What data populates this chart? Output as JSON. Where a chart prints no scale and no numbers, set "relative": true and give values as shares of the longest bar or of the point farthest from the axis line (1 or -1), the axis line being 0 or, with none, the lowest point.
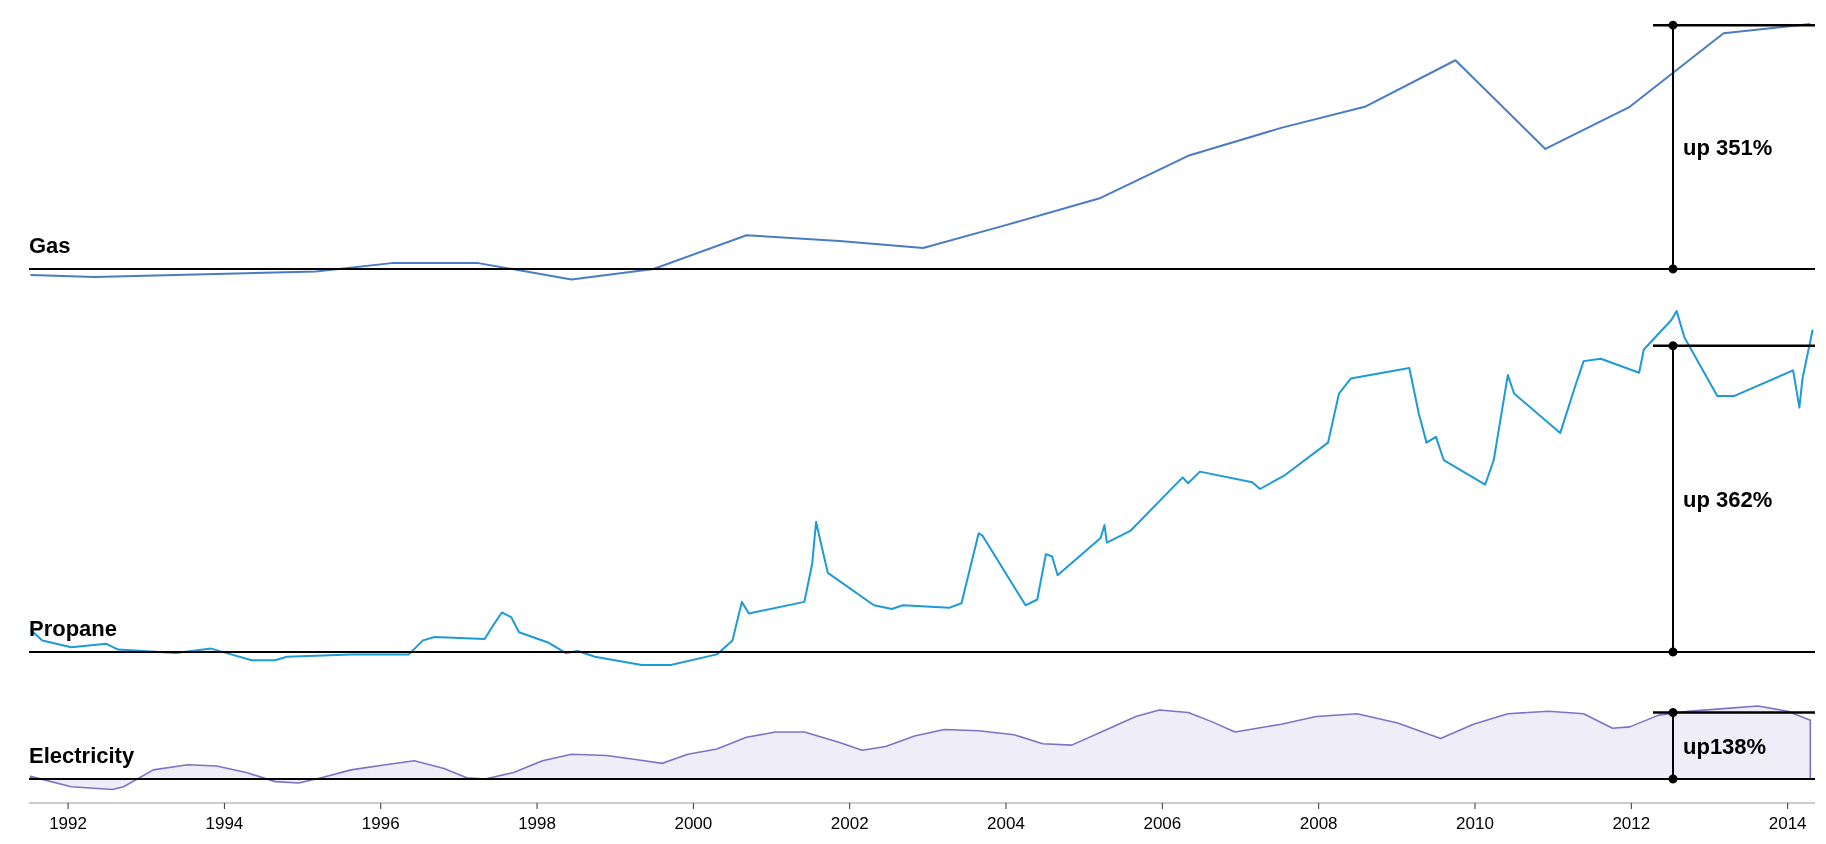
{
  "chart_data": [
    {
      "type": "line",
      "title": "Gas",
      "relative": true,
      "color": "#4a7cc4",
      "xlim": [
        1991.5,
        2014.35
      ],
      "tick_labels": false,
      "x": [
        1991.52,
        1992.34,
        1995.17,
        1996.14,
        1997.25,
        1998.44,
        1999.49,
        2000.68,
        2001.87,
        2002.94,
        2004.02,
        2005.21,
        2006.33,
        2007.52,
        2008.59,
        2009.75,
        2010.9,
        2011.98,
        2013.18,
        2014.29
      ],
      "values": [
        -0.024,
        -0.033,
        -0.01,
        0.024,
        0.024,
        -0.043,
        0,
        0.138,
        0.114,
        0.086,
        0.181,
        0.29,
        0.462,
        0.576,
        0.662,
        0.852,
        0.49,
        0.662,
        0.962,
        1
      ],
      "ref_lines": [
        {
          "axis": "y",
          "value": 0.995,
          "label": "up 351%"
        }
      ]
    },
    {
      "type": "line",
      "title": "Propane",
      "relative": true,
      "color": "#1e9ad6",
      "xlim": [
        1991.5,
        2014.35
      ],
      "tick_labels": false,
      "x": [
        1991.52,
        1991.67,
        1992.04,
        1992.49,
        1992.64,
        1993.38,
        1993.83,
        1994.13,
        1994.35,
        1994.65,
        1994.8,
        1995.62,
        1996.36,
        1996.54,
        1996.69,
        1997.33,
        1997.43,
        1997.55,
        1997.67,
        1997.77,
        1998.15,
        1998.37,
        1998.52,
        1998.74,
        1999.34,
        1999.71,
        2000.3,
        2000.5,
        2000.62,
        2000.71,
        2001.42,
        2001.52,
        2001.57,
        2001.61,
        2001.72,
        2002.31,
        2002.54,
        2002.68,
        2003.28,
        2003.43,
        2003.65,
        2003.7,
        2004.25,
        2004.4,
        2004.51,
        2004.59,
        2004.66,
        2005.21,
        2005.26,
        2005.29,
        2005.59,
        2006.26,
        2006.33,
        2006.48,
        2007.15,
        2007.25,
        2007.57,
        2008.12,
        2008.26,
        2008.41,
        2009.16,
        2009.28,
        2009.38,
        2009.5,
        2009.6,
        2010.13,
        2010.24,
        2010.42,
        2010.5,
        2011.09,
        2011.29,
        2011.39,
        2011.61,
        2012.1,
        2012.16,
        2012.51,
        2012.58,
        2012.68,
        2013.1,
        2013.32,
        2014.07,
        2014.15,
        2014.19,
        2014.32
      ],
      "values": [
        0.065,
        0.034,
        0.014,
        0.024,
        0.007,
        -0.003,
        0.01,
        -0.01,
        -0.024,
        -0.024,
        -0.014,
        -0.007,
        -0.007,
        0.034,
        0.044,
        0.038,
        0.075,
        0.116,
        0.102,
        0.058,
        0.027,
        -0.003,
        0.003,
        -0.014,
        -0.038,
        -0.038,
        -0.007,
        0.034,
        0.147,
        0.113,
        0.147,
        0.259,
        0.382,
        0.341,
        0.232,
        0.137,
        0.126,
        0.137,
        0.13,
        0.143,
        0.348,
        0.341,
        0.137,
        0.154,
        0.287,
        0.28,
        0.225,
        0.334,
        0.372,
        0.321,
        0.355,
        0.512,
        0.495,
        0.529,
        0.498,
        0.478,
        0.519,
        0.614,
        0.758,
        0.802,
        0.833,
        0.7,
        0.614,
        0.631,
        0.563,
        0.491,
        0.563,
        0.812,
        0.758,
        0.642,
        0.785,
        0.853,
        0.86,
        0.819,
        0.887,
        0.973,
        1,
        0.922,
        0.751,
        0.751,
        0.826,
        0.717,
        0.802,
        0.945
      ],
      "ref_lines": [
        {
          "axis": "y",
          "value": 0.898,
          "label": "up 362%"
        }
      ]
    },
    {
      "type": "area",
      "title": "Electricity",
      "relative": true,
      "color": "#7b74c4",
      "xlim": [
        1991.5,
        2014.35
      ],
      "tick_labels": "x",
      "xticks": [
        1992,
        1994,
        1996,
        1998,
        2000,
        2002,
        2004,
        2006,
        2008,
        2010,
        2012,
        2014
      ],
      "x": [
        1991.52,
        1992.04,
        1992.57,
        1992.71,
        1993.09,
        1993.53,
        1993.9,
        1994.28,
        1994.65,
        1994.95,
        1995.24,
        1995.62,
        1996.06,
        1996.43,
        1996.81,
        1997.1,
        1997.33,
        1997.7,
        1998.07,
        1998.44,
        1998.89,
        1999.26,
        1999.6,
        1999.93,
        2000.3,
        2000.68,
        2001.05,
        2001.42,
        2001.87,
        2002.16,
        2002.46,
        2002.83,
        2003.21,
        2003.65,
        2004.1,
        2004.47,
        2004.84,
        2005.29,
        2005.66,
        2005.96,
        2006.33,
        2006.63,
        2006.93,
        2007.52,
        2007.97,
        2008.49,
        2009.01,
        2009.56,
        2009.98,
        2010.42,
        2010.94,
        2011.39,
        2011.76,
        2011.98,
        2012.35,
        2012.73,
        2013.18,
        2013.62,
        2014.0,
        2014.29
      ],
      "values": [
        0.036,
        -0.107,
        -0.143,
        -0.107,
        0.125,
        0.196,
        0.179,
        0.089,
        -0.036,
        -0.054,
        0.018,
        0.125,
        0.196,
        0.25,
        0.143,
        0.018,
        0,
        0.089,
        0.25,
        0.339,
        0.321,
        0.268,
        0.214,
        0.339,
        0.411,
        0.571,
        0.643,
        0.643,
        0.5,
        0.393,
        0.446,
        0.589,
        0.679,
        0.661,
        0.607,
        0.482,
        0.464,
        0.679,
        0.857,
        0.946,
        0.911,
        0.786,
        0.643,
        0.75,
        0.857,
        0.893,
        0.768,
        0.554,
        0.75,
        0.893,
        0.929,
        0.893,
        0.696,
        0.714,
        0.875,
        0.929,
        0.964,
        1,
        0.929,
        0.804
      ],
      "ref_lines": [
        {
          "axis": "y",
          "value": 0.911,
          "label": "up138%"
        }
      ]
    }
  ]
}
